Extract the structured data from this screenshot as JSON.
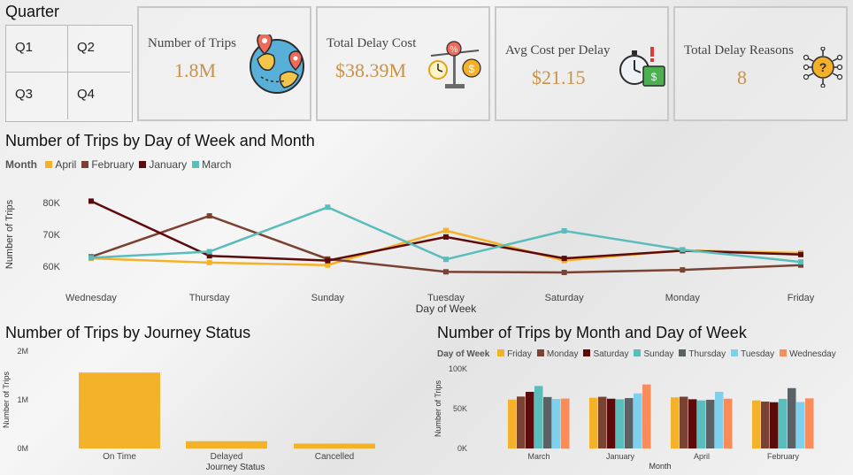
{
  "slicer": {
    "title": "Quarter",
    "options": [
      "Q1",
      "Q2",
      "Q3",
      "Q4"
    ]
  },
  "cards": [
    {
      "label": "Number of Trips",
      "value": "1.8M",
      "icon": "globe-map-pins-icon"
    },
    {
      "label": "Total Delay Cost",
      "value": "$38.39M",
      "icon": "scale-clock-coin-icon"
    },
    {
      "label": "Avg Cost per Delay",
      "value": "$21.15",
      "icon": "stopwatch-cash-icon"
    },
    {
      "label": "Total Delay Reasons",
      "value": "8",
      "icon": "circuit-question-icon"
    }
  ],
  "charts": {
    "line": {
      "title": "Number of Trips by Day of Week and Month",
      "legend_title": "Month"
    },
    "journey": {
      "title": "Number of Trips by Journey Status"
    },
    "month": {
      "title": "Number of Trips by Month and Day of Week",
      "legend_title": "Day of Week"
    }
  },
  "chart_data": [
    {
      "type": "line",
      "title": "Number of Trips by Day of Week and Month",
      "xlabel": "Day of Week",
      "ylabel": "Number of Trips",
      "categories": [
        "Wednesday",
        "Thursday",
        "Sunday",
        "Tuesday",
        "Saturday",
        "Monday",
        "Friday"
      ],
      "yticks": [
        "60K",
        "70K",
        "80K"
      ],
      "ylim": [
        57000,
        83000
      ],
      "series": [
        {
          "name": "April",
          "color": "#f4b22a",
          "values": [
            62500,
            61200,
            60400,
            71200,
            61800,
            65000,
            64200
          ]
        },
        {
          "name": "February",
          "color": "#7a4232",
          "values": [
            63000,
            75800,
            62300,
            58300,
            58100,
            58900,
            60400
          ]
        },
        {
          "name": "January",
          "color": "#5c0a0a",
          "values": [
            80400,
            63300,
            61800,
            69200,
            62500,
            64900,
            63700
          ]
        },
        {
          "name": "March",
          "color": "#5bbcbc",
          "values": [
            62700,
            64600,
            78500,
            62200,
            71100,
            65200,
            61400
          ]
        }
      ],
      "legend": "top-left"
    },
    {
      "type": "bar",
      "title": "Number of Trips by Journey Status",
      "xlabel": "Journey Status",
      "ylabel": "Number of Trips",
      "categories": [
        "On Time",
        "Delayed",
        "Cancelled"
      ],
      "values": [
        1560000,
        150000,
        100000
      ],
      "yticks": [
        "0M",
        "1M",
        "2M"
      ],
      "ylim": [
        0,
        2000000
      ],
      "color": "#f4b22a"
    },
    {
      "type": "bar",
      "title": "Number of Trips by Month and Day of Week",
      "xlabel": "Month",
      "ylabel": "Number of Trips",
      "categories": [
        "March",
        "January",
        "April",
        "February"
      ],
      "yticks": [
        "0K",
        "50K",
        "100K"
      ],
      "ylim": [
        0,
        100000
      ],
      "legend": "top-left",
      "series": [
        {
          "name": "Friday",
          "color": "#f4b22a",
          "values": [
            61400,
            63700,
            64200,
            60400
          ]
        },
        {
          "name": "Monday",
          "color": "#7a4232",
          "values": [
            65200,
            64900,
            65000,
            58900
          ]
        },
        {
          "name": "Saturday",
          "color": "#5c0a0a",
          "values": [
            71100,
            62500,
            61800,
            58100
          ]
        },
        {
          "name": "Sunday",
          "color": "#5bbcbc",
          "values": [
            78500,
            61800,
            60400,
            62300
          ]
        },
        {
          "name": "Thursday",
          "color": "#5a6266",
          "values": [
            64600,
            63300,
            61200,
            75800
          ]
        },
        {
          "name": "Tuesday",
          "color": "#7fd0ec",
          "values": [
            62200,
            69200,
            71200,
            58300
          ]
        },
        {
          "name": "Wednesday",
          "color": "#fa8c5a",
          "values": [
            62700,
            80400,
            62500,
            63000
          ]
        }
      ]
    }
  ]
}
